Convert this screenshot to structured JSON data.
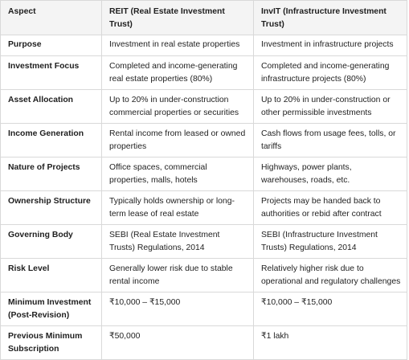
{
  "headers": [
    "Aspect",
    "REIT (Real Estate Investment Trust)",
    "InvIT (Infrastructure Investment Trust)"
  ],
  "rows": [
    [
      "Purpose",
      "Investment in real estate properties",
      "Investment in infrastructure projects"
    ],
    [
      "Investment Focus",
      "Completed and income-generating real estate properties (80%)",
      "Completed and income-generating infrastructure projects (80%)"
    ],
    [
      "Asset Allocation",
      "Up to 20% in under-construction commercial properties or securities",
      "Up to 20% in under-construction or other permissible investments"
    ],
    [
      "Income Generation",
      "Rental income from leased or owned properties",
      "Cash flows from usage fees, tolls, or tariffs"
    ],
    [
      "Nature of Projects",
      "Office spaces, commercial properties, malls, hotels",
      "Highways, power plants, warehouses, roads, etc."
    ],
    [
      "Ownership Structure",
      "Typically holds ownership or long-term lease of real estate",
      "Projects may be handed back to authorities or rebid after contract"
    ],
    [
      "Governing Body",
      "SEBI (Real Estate Investment Trusts) Regulations, 2014",
      "SEBI (Infrastructure Investment Trusts) Regulations, 2014"
    ],
    [
      "Risk Level",
      "Generally lower risk due to stable rental income",
      "Relatively higher risk due to operational and regulatory challenges"
    ],
    [
      "Minimum Investment (Post-Revision)",
      "₹10,000 – ₹15,000",
      "₹10,000 – ₹15,000"
    ],
    [
      "Previous Minimum Subscription",
      "₹50,000",
      "₹1 lakh"
    ]
  ]
}
